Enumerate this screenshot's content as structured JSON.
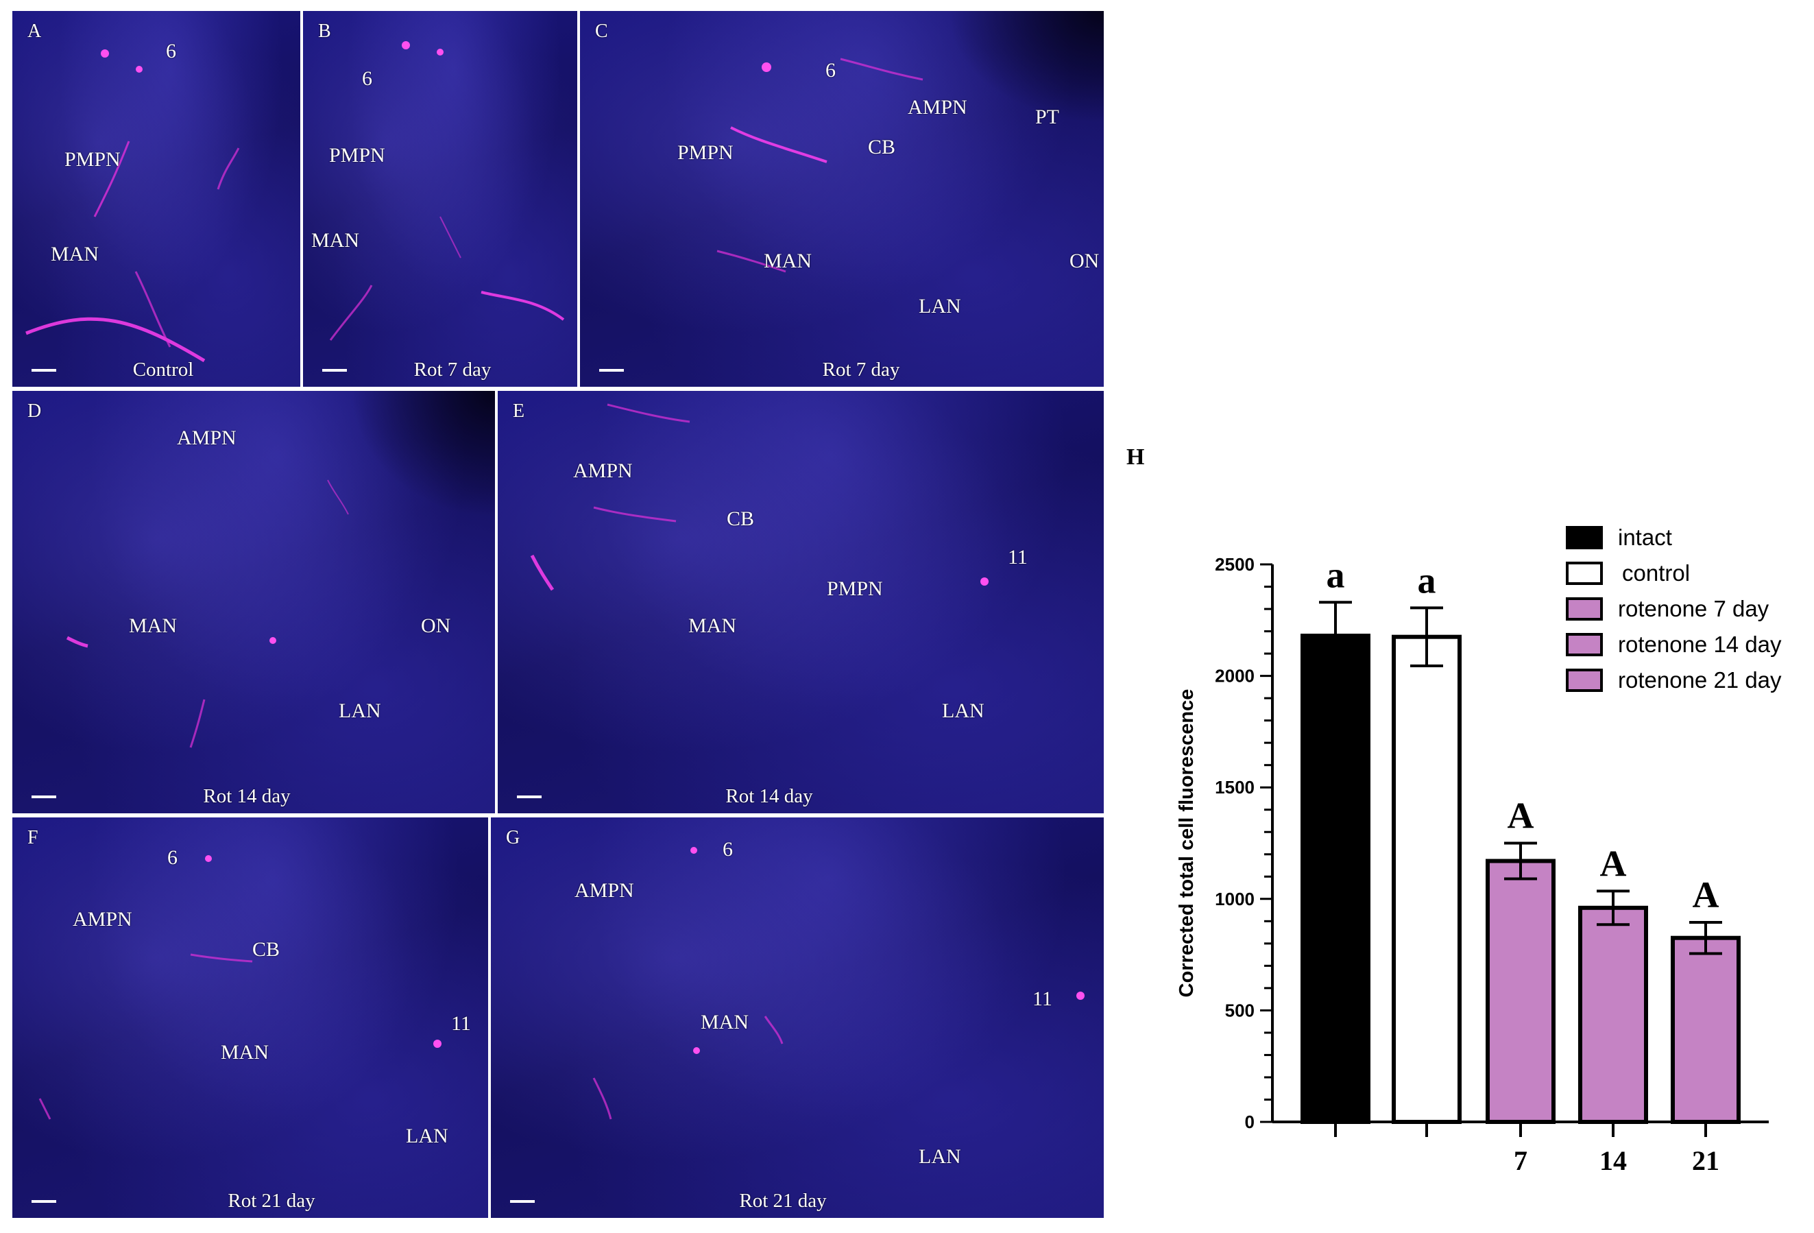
{
  "panels": {
    "A": {
      "letter": "A",
      "caption": "Control",
      "labels": {
        "n6": "6",
        "pmpn": "PMPN",
        "man": "MAN"
      }
    },
    "B": {
      "letter": "B",
      "caption": "Rot 7 day",
      "labels": {
        "n6": "6",
        "pmpn": "PMPN",
        "man": "MAN"
      }
    },
    "C": {
      "letter": "C",
      "caption": "Rot 7 day",
      "labels": {
        "n6": "6",
        "ampn": "AMPN",
        "pt": "PT",
        "pmpn": "PMPN",
        "cb": "CB",
        "man": "MAN",
        "on": "ON",
        "lan": "LAN"
      }
    },
    "D": {
      "letter": "D",
      "caption": "Rot 14 day",
      "labels": {
        "ampn": "AMPN",
        "man": "MAN",
        "on": "ON",
        "lan": "LAN"
      }
    },
    "E": {
      "letter": "E",
      "caption": "Rot 14 day",
      "labels": {
        "ampn": "AMPN",
        "cb": "CB",
        "n11": "11",
        "pmpn": "PMPN",
        "man": "MAN",
        "lan": "LAN"
      }
    },
    "F": {
      "letter": "F",
      "caption": "Rot 21 day",
      "labels": {
        "n6": "6",
        "ampn": "AMPN",
        "cb": "CB",
        "n11": "11",
        "man": "MAN",
        "lan": "LAN"
      }
    },
    "G": {
      "letter": "G",
      "caption": "Rot 21 day",
      "labels": {
        "n6": "6",
        "ampn": "AMPN",
        "n11": "11",
        "man": "MAN",
        "lan": "LAN"
      }
    }
  },
  "panel_h_label": "H",
  "colors": {
    "intact": "#000000",
    "control": "#ffffff",
    "rotenone": "#c583c4",
    "fiber": "#e030d8",
    "nuclei": "#2a2ad0"
  },
  "chart_data": {
    "type": "bar",
    "categories": [
      "",
      "",
      "7",
      "14",
      "21"
    ],
    "values": [
      2180,
      2175,
      1170,
      960,
      825
    ],
    "errors": [
      150,
      130,
      80,
      75,
      70
    ],
    "significance": [
      "a",
      "a",
      "A",
      "A",
      "A"
    ],
    "legend": [
      "intact",
      "control",
      "rotenone 7 day",
      "rotenone 14 day",
      "rotenone 21 day"
    ],
    "ylabel": "Corrected total cell fluorescence",
    "xlabel": "",
    "ylim": [
      0,
      2500
    ],
    "yticks": [
      0,
      500,
      1000,
      1500,
      2000,
      2500
    ],
    "legend_position": "top-right",
    "grid": false
  }
}
